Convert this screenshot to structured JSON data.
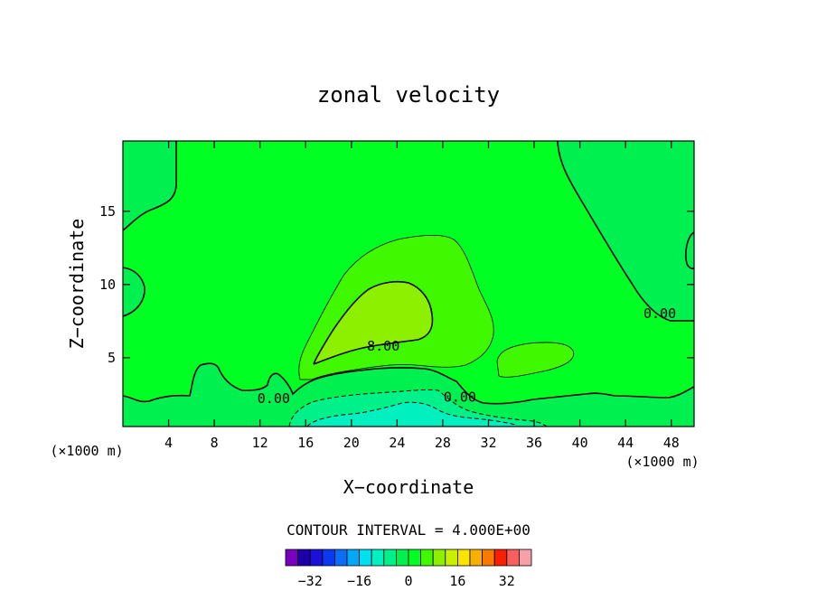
{
  "chart_data": {
    "type": "contour",
    "title": "zonal velocity",
    "xlabel": "X−coordinate",
    "ylabel": "Z−coordinate",
    "x_unit_left": "(×1000 m)",
    "x_unit_right": "(×1000 m)",
    "xlim": [
      0,
      50
    ],
    "ylim": [
      0.3,
      19.8
    ],
    "x_ticks": [
      4,
      8,
      12,
      16,
      20,
      24,
      28,
      32,
      36,
      40,
      44,
      48
    ],
    "y_ticks": [
      5,
      10,
      15
    ],
    "contour_interval_text": "CONTOUR INTERVAL = 4.000E+00",
    "contour_labels": [
      {
        "text": "0.00",
        "x": 13.2,
        "y": 2.2
      },
      {
        "text": "8.00",
        "x": 22.8,
        "y": 5.8
      },
      {
        "text": "0.00",
        "x": 29.5,
        "y": 2.3
      },
      {
        "text": "0.00",
        "x": 47.0,
        "y": 8.0
      }
    ],
    "colorbar": {
      "levels": [
        -36,
        -32,
        -28,
        -24,
        -20,
        -16,
        -12,
        -8,
        -4,
        0,
        4,
        8,
        12,
        16,
        20,
        24,
        28,
        32,
        36
      ],
      "tick_labels": [
        "−32",
        "−16",
        "0",
        "16",
        "32"
      ],
      "tick_values": [
        -32,
        -16,
        0,
        16,
        32
      ],
      "colors": [
        "#7a00c0",
        "#1e00a8",
        "#1a10d8",
        "#0a3af0",
        "#0a6ef8",
        "#00a8f8",
        "#00e0f0",
        "#00f0c0",
        "#00f08a",
        "#00f050",
        "#00ff22",
        "#40f800",
        "#8cf000",
        "#c8f000",
        "#f8e400",
        "#f8b000",
        "#f87a00",
        "#f82000",
        "#f86060",
        "#f8a0a8"
      ]
    }
  }
}
